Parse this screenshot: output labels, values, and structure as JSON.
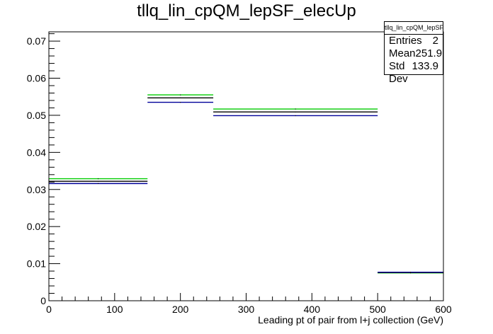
{
  "chart_data": {
    "type": "histogram",
    "title": "tllq_lin_cpQM_lepSF_elecUp",
    "xlabel": "Leading pt of pair from l+j collection (GeV)",
    "ylabel": "",
    "xlim": [
      0,
      600
    ],
    "ylim": [
      0,
      0.0725
    ],
    "x_ticks": [
      0,
      100,
      200,
      300,
      400,
      500,
      600
    ],
    "y_ticks": [
      0,
      0.01,
      0.02,
      0.03,
      0.04,
      0.05,
      0.06,
      0.07
    ],
    "x_tick_labels": [
      "0",
      "100",
      "200",
      "300",
      "400",
      "500",
      "600"
    ],
    "y_tick_labels": [
      "0",
      "0.01",
      "0.02",
      "0.03",
      "0.04",
      "0.05",
      "0.06",
      "0.07"
    ],
    "bin_edges": [
      0,
      150,
      250,
      500,
      600
    ],
    "series": [
      {
        "color": "#00cc00",
        "values": [
          0.0329,
          0.0555,
          0.0517,
          0.0075
        ]
      },
      {
        "color": "#000000",
        "values": [
          0.0322,
          0.0547,
          0.0509,
          0.0076
        ]
      },
      {
        "color": "#000099",
        "values": [
          0.0316,
          0.0535,
          0.0499,
          0.0077
        ]
      }
    ],
    "stats": {
      "name": "tllq_lin_cpQM_lepSF_elecUp",
      "entries_label": "Entries",
      "entries": "2",
      "mean_label": "Mean",
      "mean": "251.9",
      "stddev_label": "Std Dev",
      "stddev": "133.9"
    }
  }
}
